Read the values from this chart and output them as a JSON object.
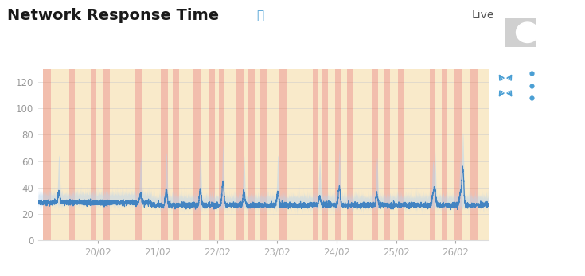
{
  "title": "Network Response Time",
  "title_fontsize": 14,
  "background_color": "#ffffff",
  "plot_bg_color": "#ffffff",
  "ylabel_ticks": [
    0,
    20,
    40,
    60,
    80,
    100,
    120
  ],
  "ylim": [
    0,
    130
  ],
  "xlim_days": [
    19.0,
    26.55
  ],
  "x_tick_labels": [
    "20/02",
    "21/02",
    "22/02",
    "23/02",
    "24/02",
    "25/02",
    "26/02"
  ],
  "x_tick_positions": [
    20.0,
    21.0,
    22.0,
    23.0,
    24.0,
    25.0,
    26.0
  ],
  "baseline_mean": 27.5,
  "baseline_std": 3.0,
  "line_color": "#3a7fc1",
  "fill_color": "#b8d4ee",
  "fill_alpha": 0.5,
  "grid_color": "#cccccc",
  "grid_alpha": 0.6,
  "red_bands": [
    [
      19.08,
      19.22
    ],
    [
      19.52,
      19.62
    ],
    [
      19.88,
      19.96
    ],
    [
      20.1,
      20.2
    ],
    [
      20.62,
      20.75
    ],
    [
      21.06,
      21.18
    ],
    [
      21.26,
      21.36
    ],
    [
      21.6,
      21.73
    ],
    [
      21.86,
      21.96
    ],
    [
      22.03,
      22.13
    ],
    [
      22.33,
      22.46
    ],
    [
      22.53,
      22.63
    ],
    [
      22.73,
      22.83
    ],
    [
      23.03,
      23.16
    ],
    [
      23.6,
      23.7
    ],
    [
      23.76,
      23.86
    ],
    [
      23.98,
      24.08
    ],
    [
      24.18,
      24.28
    ],
    [
      24.6,
      24.7
    ],
    [
      24.8,
      24.9
    ],
    [
      25.03,
      25.13
    ],
    [
      25.56,
      25.66
    ],
    [
      25.76,
      25.86
    ],
    [
      25.98,
      26.1
    ],
    [
      26.23,
      26.38
    ]
  ],
  "yellow_bands": [
    [
      19.22,
      19.52
    ],
    [
      19.62,
      19.88
    ],
    [
      19.96,
      20.1
    ],
    [
      20.2,
      20.62
    ],
    [
      20.75,
      21.06
    ],
    [
      21.18,
      21.26
    ],
    [
      21.36,
      21.6
    ],
    [
      21.73,
      21.86
    ],
    [
      21.96,
      22.03
    ],
    [
      22.13,
      22.33
    ],
    [
      22.46,
      22.53
    ],
    [
      22.63,
      22.73
    ],
    [
      22.83,
      23.03
    ],
    [
      23.16,
      23.6
    ],
    [
      23.7,
      23.76
    ],
    [
      23.86,
      23.98
    ],
    [
      24.08,
      24.18
    ],
    [
      24.28,
      24.6
    ],
    [
      24.7,
      24.8
    ],
    [
      24.9,
      25.03
    ],
    [
      25.13,
      25.56
    ],
    [
      25.66,
      25.76
    ],
    [
      25.86,
      25.98
    ],
    [
      26.1,
      26.23
    ],
    [
      26.38,
      26.55
    ]
  ],
  "red_color": "#e8896a",
  "yellow_color": "#f5d9a0",
  "red_alpha": 0.55,
  "yellow_alpha": 0.55,
  "live_label": "Live"
}
